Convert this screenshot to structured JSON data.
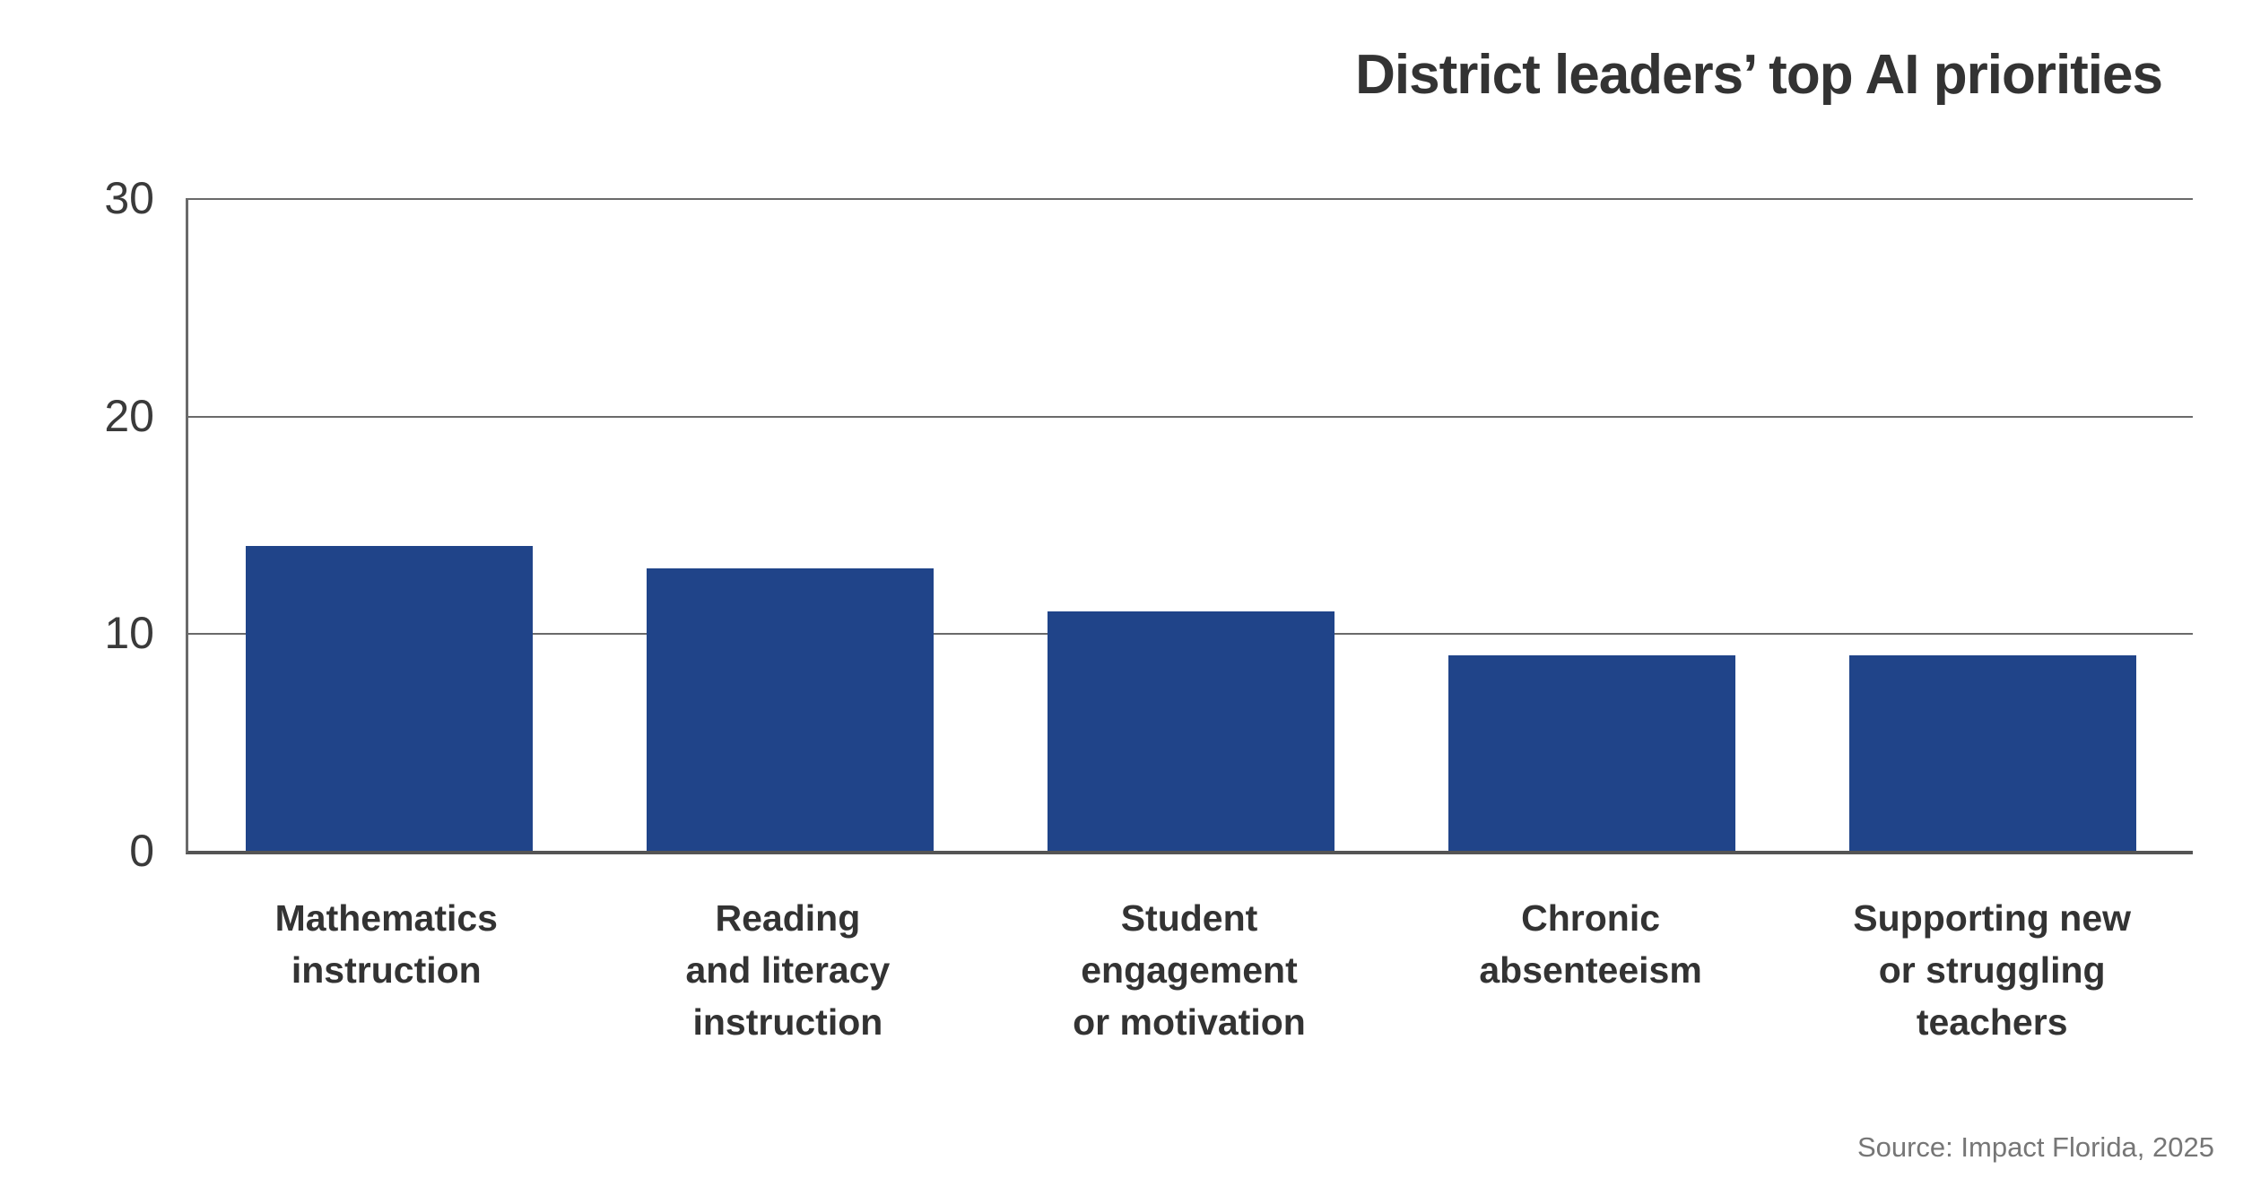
{
  "chart_data": {
    "type": "bar",
    "title": "District leaders’ top AI priorities",
    "categories": [
      "Mathematics\ninstruction",
      "Reading\nand literacy\ninstruction",
      "Student\nengagement\nor motivation",
      "Chronic\nabsenteeism",
      "Supporting new\nor struggling\nteachers"
    ],
    "values": [
      14,
      13,
      11,
      9,
      9
    ],
    "xlabel": "",
    "ylabel": "",
    "ylim": [
      0,
      30
    ],
    "yticks": [
      0,
      10,
      20,
      30
    ],
    "grid": "horizontal",
    "legend": "none",
    "source": "Source: Impact Florida, 2025",
    "colors": {
      "bar": "#204489",
      "axis": "#545454",
      "grid": "#6a6a6a",
      "title_text": "#333333",
      "tick_text": "#3a3a3a",
      "label_text": "#333333",
      "source_text": "#767676"
    }
  }
}
